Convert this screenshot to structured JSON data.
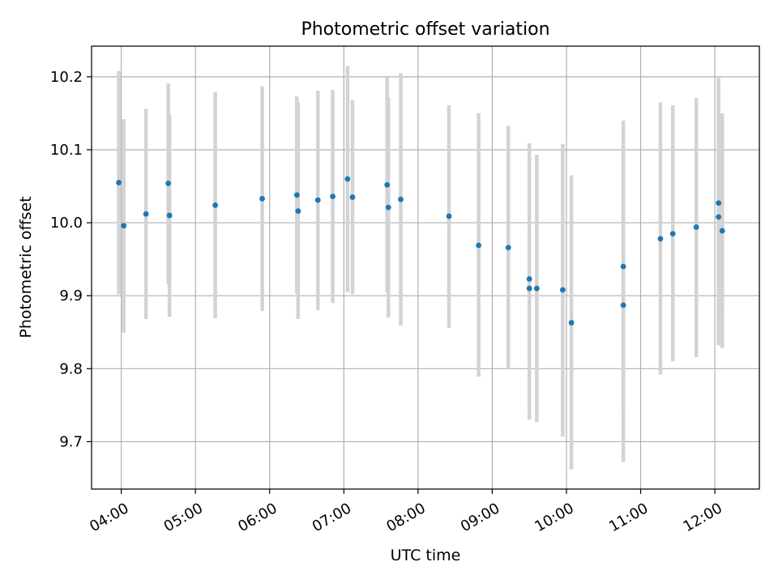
{
  "chart_data": {
    "type": "scatter",
    "title": "Photometric offset variation",
    "xlabel": "UTC time",
    "ylabel": "Photometric offset",
    "x_unit": "UTC time (HH:MM)",
    "xlim": [
      "03:36",
      "12:36"
    ],
    "ylim": [
      9.635,
      10.242
    ],
    "x_ticks": [
      "04:00",
      "05:00",
      "06:00",
      "07:00",
      "08:00",
      "09:00",
      "10:00",
      "11:00",
      "12:00"
    ],
    "y_ticks": [
      9.7,
      9.8,
      9.9,
      10.0,
      10.1,
      10.2
    ],
    "y_tick_labels": [
      "9.7",
      "9.8",
      "9.9",
      "10.0",
      "10.1",
      "10.2"
    ],
    "grid": true,
    "colors": {
      "point": "#1f77b4",
      "errorbar": "#d3d3d3",
      "grid": "#b0b0b0"
    },
    "points": [
      {
        "t": "03:58",
        "y": 10.055,
        "lo": 9.902,
        "hi": 10.208
      },
      {
        "t": "04:02",
        "y": 9.996,
        "lo": 9.849,
        "hi": 10.142
      },
      {
        "t": "04:20",
        "y": 10.012,
        "lo": 9.868,
        "hi": 10.156
      },
      {
        "t": "04:38",
        "y": 10.054,
        "lo": 9.916,
        "hi": 10.191
      },
      {
        "t": "04:39",
        "y": 10.01,
        "lo": 9.871,
        "hi": 10.148
      },
      {
        "t": "05:16",
        "y": 10.024,
        "lo": 9.869,
        "hi": 10.179
      },
      {
        "t": "05:54",
        "y": 10.033,
        "lo": 9.879,
        "hi": 10.187
      },
      {
        "t": "06:22",
        "y": 10.038,
        "lo": 9.903,
        "hi": 10.173
      },
      {
        "t": "06:23",
        "y": 10.016,
        "lo": 9.868,
        "hi": 10.165
      },
      {
        "t": "06:39",
        "y": 10.031,
        "lo": 9.88,
        "hi": 10.181
      },
      {
        "t": "06:51",
        "y": 10.036,
        "lo": 9.89,
        "hi": 10.182
      },
      {
        "t": "07:03",
        "y": 10.06,
        "lo": 9.905,
        "hi": 10.215
      },
      {
        "t": "07:07",
        "y": 10.035,
        "lo": 9.902,
        "hi": 10.168
      },
      {
        "t": "07:35",
        "y": 10.052,
        "lo": 9.905,
        "hi": 10.2
      },
      {
        "t": "07:36",
        "y": 10.021,
        "lo": 9.87,
        "hi": 10.172
      },
      {
        "t": "07:46",
        "y": 10.032,
        "lo": 9.859,
        "hi": 10.205
      },
      {
        "t": "08:25",
        "y": 10.009,
        "lo": 9.856,
        "hi": 10.161
      },
      {
        "t": "08:49",
        "y": 9.969,
        "lo": 9.789,
        "hi": 10.15
      },
      {
        "t": "09:13",
        "y": 9.966,
        "lo": 9.799,
        "hi": 10.133
      },
      {
        "t": "09:30",
        "y": 9.923,
        "lo": 9.736,
        "hi": 10.109
      },
      {
        "t": "09:30",
        "y": 9.91,
        "lo": 9.73,
        "hi": 10.09
      },
      {
        "t": "09:36",
        "y": 9.91,
        "lo": 9.727,
        "hi": 10.093
      },
      {
        "t": "09:57",
        "y": 9.908,
        "lo": 9.707,
        "hi": 10.108
      },
      {
        "t": "10:04",
        "y": 9.863,
        "lo": 9.662,
        "hi": 10.065
      },
      {
        "t": "10:46",
        "y": 9.94,
        "lo": 9.74,
        "hi": 10.14
      },
      {
        "t": "10:46",
        "y": 9.887,
        "lo": 9.672,
        "hi": 10.1
      },
      {
        "t": "11:16",
        "y": 9.978,
        "lo": 9.792,
        "hi": 10.165
      },
      {
        "t": "11:26",
        "y": 9.985,
        "lo": 9.81,
        "hi": 10.161
      },
      {
        "t": "11:45",
        "y": 9.994,
        "lo": 9.816,
        "hi": 10.171
      },
      {
        "t": "12:03",
        "y": 10.027,
        "lo": 9.87,
        "hi": 10.2
      },
      {
        "t": "12:03",
        "y": 10.008,
        "lo": 9.832,
        "hi": 10.185
      },
      {
        "t": "12:06",
        "y": 9.989,
        "lo": 9.828,
        "hi": 10.15
      }
    ]
  }
}
